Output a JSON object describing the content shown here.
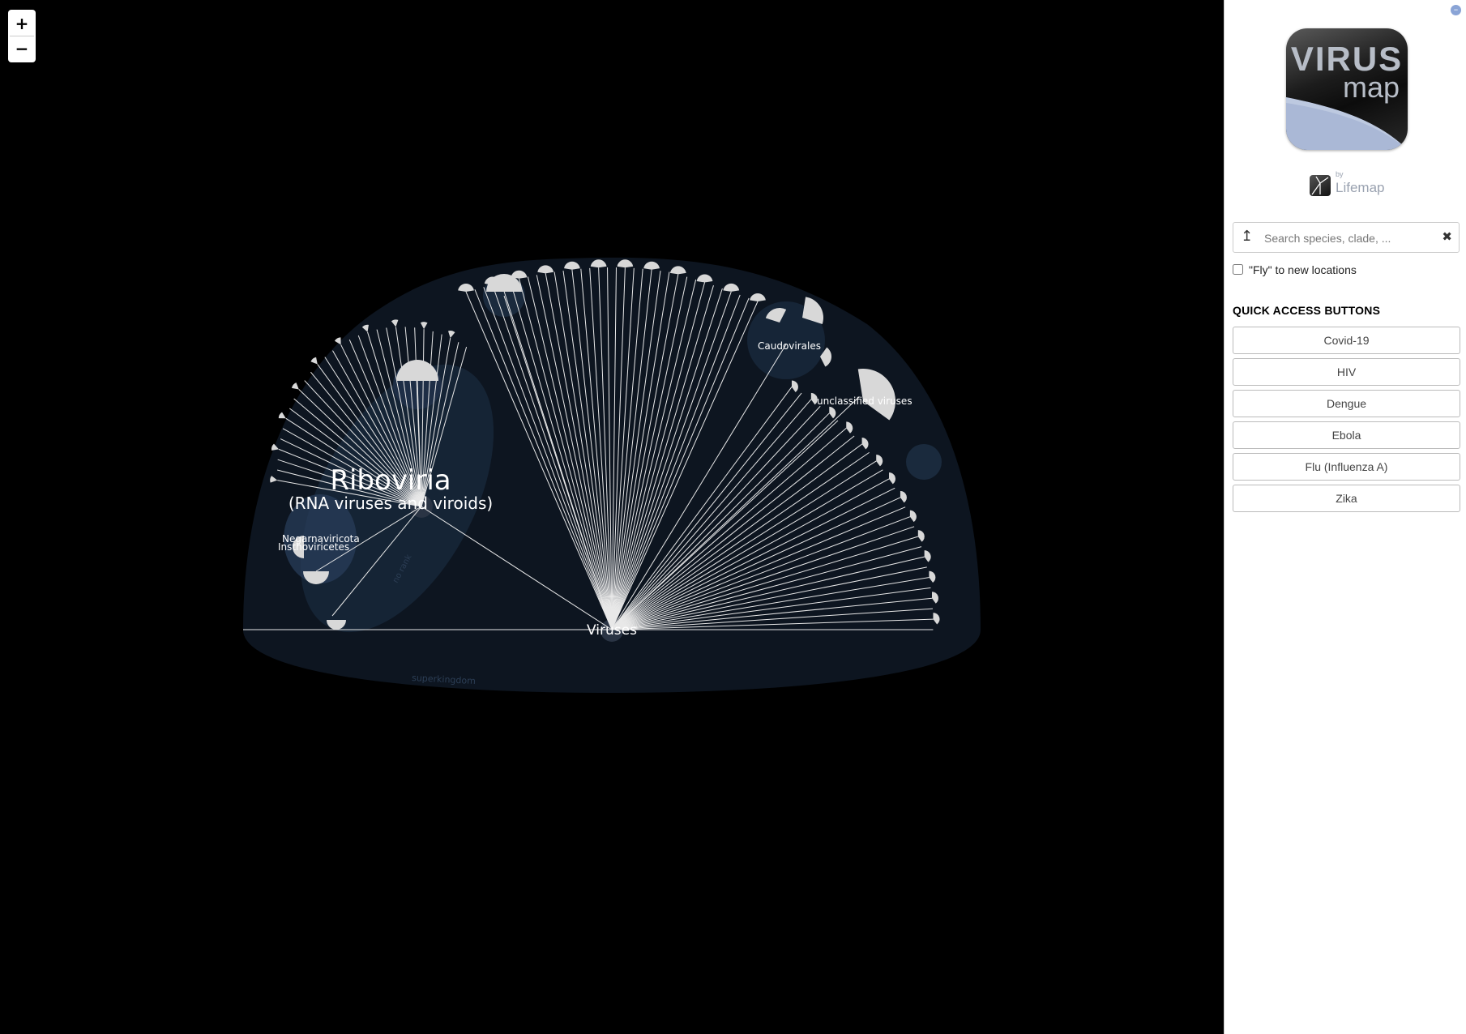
{
  "map": {
    "zoom_in_label": "+",
    "zoom_out_label": "−",
    "labels": {
      "riboviria": "Riboviria",
      "riboviria_sub": "(RNA viruses and viroids)",
      "negarnaviricota": "Negarnaviricota",
      "insthoviricetes": "Insthoviricetes",
      "caudovirales": "Caudovirales",
      "unclassified": "unclassified viruses",
      "viruses": "Viruses",
      "no_rank": "no rank",
      "superkingdom": "superkingdom"
    },
    "colors": {
      "background": "#000000",
      "dome": "#0d1520",
      "clade": "#17273a",
      "branch": "#e8e8e8"
    }
  },
  "sidebar": {
    "collapse_icon": "minus-circle-icon",
    "logo_text_1": "VIRUS",
    "logo_text_2": "map",
    "byline_small": "by",
    "byline_name": "Lifemap",
    "search": {
      "placeholder": "Search species, clade, ...",
      "value": "",
      "up_icon": "up-arrow-icon",
      "clear_icon": "close-icon"
    },
    "fly_label": "\"Fly\" to new locations",
    "fly_checked": false,
    "quick_access_title": "QUICK ACCESS BUTTONS",
    "quick_buttons": [
      "Covid-19",
      "HIV",
      "Dengue",
      "Ebola",
      "Flu (Influenza A)",
      "Zika"
    ]
  }
}
